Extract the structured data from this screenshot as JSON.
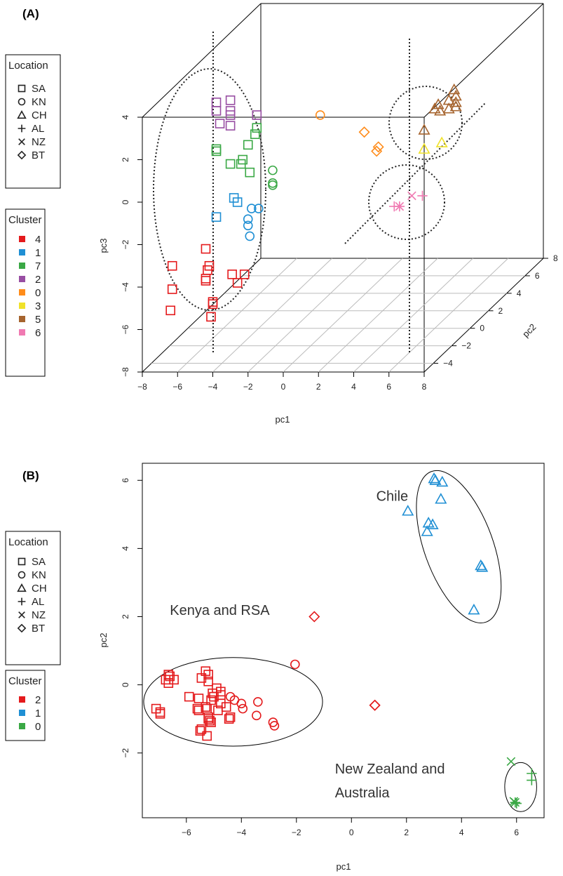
{
  "chart_data": [
    {
      "panel": "(A)",
      "type": "scatter",
      "projection": "3d",
      "xlabel": "pc1",
      "ylabel": "pc2",
      "zlabel": "pc3",
      "xlim": [
        -8,
        8
      ],
      "ylim": [
        -5,
        8
      ],
      "zlim": [
        -8,
        5
      ],
      "x_ticks": [
        "−8",
        "−6",
        "−4",
        "−2",
        "0",
        "2",
        "4",
        "6",
        "8"
      ],
      "y_ticks": [
        "−4",
        "−2",
        "0",
        "2",
        "4",
        "6",
        "8"
      ],
      "z_ticks": [
        "−8",
        "−6",
        "−4",
        "−2",
        "0",
        "2",
        "4"
      ],
      "legend_location": {
        "title": "Location",
        "items": [
          {
            "label": "SA",
            "marker": "square"
          },
          {
            "label": "KN",
            "marker": "circle"
          },
          {
            "label": "CH",
            "marker": "triangle"
          },
          {
            "label": "AL",
            "marker": "plus"
          },
          {
            "label": "NZ",
            "marker": "cross"
          },
          {
            "label": "BT",
            "marker": "diamond"
          }
        ]
      },
      "legend_cluster": {
        "title": "Cluster",
        "items": [
          {
            "label": "4",
            "color": "#e41a1c"
          },
          {
            "label": "1",
            "color": "#1f8fd4"
          },
          {
            "label": "7",
            "color": "#3aa845"
          },
          {
            "label": "2",
            "color": "#984ea3"
          },
          {
            "label": "0",
            "color": "#ff8c1a"
          },
          {
            "label": "3",
            "color": "#f0e22a"
          },
          {
            "label": "5",
            "color": "#a6642e"
          },
          {
            "label": "6",
            "color": "#f07ab2"
          }
        ]
      },
      "points": [
        {
          "pc1": -3.8,
          "pc2": -5,
          "pc3": 4.7,
          "loc": "SA",
          "cl": "2"
        },
        {
          "pc1": -3.0,
          "pc2": -5,
          "pc3": 4.8,
          "loc": "SA",
          "cl": "2"
        },
        {
          "pc1": -3.0,
          "pc2": -5,
          "pc3": 4.3,
          "loc": "SA",
          "cl": "2"
        },
        {
          "pc1": -3.0,
          "pc2": -5,
          "pc3": 4.1,
          "loc": "SA",
          "cl": "2"
        },
        {
          "pc1": -3.6,
          "pc2": -5,
          "pc3": 3.7,
          "loc": "SA",
          "cl": "2"
        },
        {
          "pc1": -3.8,
          "pc2": -5,
          "pc3": 4.3,
          "loc": "SA",
          "cl": "2"
        },
        {
          "pc1": -3.0,
          "pc2": -5,
          "pc3": 3.6,
          "loc": "SA",
          "cl": "2"
        },
        {
          "pc1": -1.5,
          "pc2": -5,
          "pc3": 4.1,
          "loc": "SA",
          "cl": "2"
        },
        {
          "pc1": -1.5,
          "pc2": -5,
          "pc3": 3.5,
          "loc": "SA",
          "cl": "7"
        },
        {
          "pc1": -1.6,
          "pc2": -5,
          "pc3": 3.2,
          "loc": "SA",
          "cl": "7"
        },
        {
          "pc1": -3.8,
          "pc2": -5,
          "pc3": 2.5,
          "loc": "SA",
          "cl": "7"
        },
        {
          "pc1": -3.8,
          "pc2": -5,
          "pc3": 2.4,
          "loc": "SA",
          "cl": "7"
        },
        {
          "pc1": -2.0,
          "pc2": -5,
          "pc3": 2.7,
          "loc": "SA",
          "cl": "7"
        },
        {
          "pc1": -2.4,
          "pc2": -5,
          "pc3": 1.8,
          "loc": "SA",
          "cl": "7"
        },
        {
          "pc1": -2.3,
          "pc2": -5,
          "pc3": 2.0,
          "loc": "SA",
          "cl": "7"
        },
        {
          "pc1": -3.0,
          "pc2": -5,
          "pc3": 1.8,
          "loc": "SA",
          "cl": "7"
        },
        {
          "pc1": -1.9,
          "pc2": -5,
          "pc3": 1.4,
          "loc": "SA",
          "cl": "7"
        },
        {
          "pc1": -0.6,
          "pc2": -5,
          "pc3": 1.5,
          "loc": "KN",
          "cl": "7"
        },
        {
          "pc1": -0.6,
          "pc2": -5,
          "pc3": 0.8,
          "loc": "KN",
          "cl": "7"
        },
        {
          "pc1": -0.6,
          "pc2": -5,
          "pc3": 0.9,
          "loc": "KN",
          "cl": "7"
        },
        {
          "pc1": -2.8,
          "pc2": -5,
          "pc3": 0.2,
          "loc": "SA",
          "cl": "1"
        },
        {
          "pc1": -2.6,
          "pc2": -5,
          "pc3": 0.0,
          "loc": "SA",
          "cl": "1"
        },
        {
          "pc1": -3.8,
          "pc2": -5,
          "pc3": -0.7,
          "loc": "SA",
          "cl": "1"
        },
        {
          "pc1": -1.8,
          "pc2": -5,
          "pc3": -0.3,
          "loc": "KN",
          "cl": "1"
        },
        {
          "pc1": -1.4,
          "pc2": -5,
          "pc3": -0.3,
          "loc": "KN",
          "cl": "1"
        },
        {
          "pc1": -2.0,
          "pc2": -5,
          "pc3": -0.8,
          "loc": "KN",
          "cl": "1"
        },
        {
          "pc1": -2.0,
          "pc2": -5,
          "pc3": -1.1,
          "loc": "KN",
          "cl": "1"
        },
        {
          "pc1": -1.9,
          "pc2": -5,
          "pc3": -1.6,
          "loc": "KN",
          "cl": "1"
        },
        {
          "pc1": -4.4,
          "pc2": -5,
          "pc3": -2.2,
          "loc": "SA",
          "cl": "4"
        },
        {
          "pc1": -6.3,
          "pc2": -5,
          "pc3": -3.0,
          "loc": "SA",
          "cl": "4"
        },
        {
          "pc1": -4.2,
          "pc2": -5,
          "pc3": -3.0,
          "loc": "SA",
          "cl": "4"
        },
        {
          "pc1": -4.3,
          "pc2": -5,
          "pc3": -3.2,
          "loc": "SA",
          "cl": "4"
        },
        {
          "pc1": -2.9,
          "pc2": -5,
          "pc3": -3.4,
          "loc": "SA",
          "cl": "4"
        },
        {
          "pc1": -2.2,
          "pc2": -5,
          "pc3": -3.4,
          "loc": "SA",
          "cl": "4"
        },
        {
          "pc1": -4.4,
          "pc2": -5,
          "pc3": -3.6,
          "loc": "SA",
          "cl": "4"
        },
        {
          "pc1": -4.4,
          "pc2": -5,
          "pc3": -3.7,
          "loc": "SA",
          "cl": "4"
        },
        {
          "pc1": -2.6,
          "pc2": -5,
          "pc3": -3.8,
          "loc": "SA",
          "cl": "4"
        },
        {
          "pc1": -6.3,
          "pc2": -5,
          "pc3": -4.1,
          "loc": "SA",
          "cl": "4"
        },
        {
          "pc1": -4.0,
          "pc2": -5,
          "pc3": -4.7,
          "loc": "SA",
          "cl": "4"
        },
        {
          "pc1": -4.0,
          "pc2": -5,
          "pc3": -4.8,
          "loc": "SA",
          "cl": "4"
        },
        {
          "pc1": -6.4,
          "pc2": -5,
          "pc3": -5.1,
          "loc": "SA",
          "cl": "4"
        },
        {
          "pc1": -4.1,
          "pc2": -5,
          "pc3": -5.4,
          "loc": "SA",
          "cl": "4"
        },
        {
          "pc1": 2.1,
          "pc2": -5,
          "pc3": 4.1,
          "loc": "KN",
          "cl": "0"
        },
        {
          "pc1": 4.6,
          "pc2": -5,
          "pc3": 3.3,
          "loc": "BT",
          "cl": "0"
        },
        {
          "pc1": 5.4,
          "pc2": -5,
          "pc3": 2.6,
          "loc": "BT",
          "cl": "0"
        },
        {
          "pc1": 5.3,
          "pc2": -5,
          "pc3": 2.4,
          "loc": "BT",
          "cl": "0"
        },
        {
          "pc1": 9.7,
          "pc2": -5,
          "pc3": 5.3,
          "loc": "CH",
          "cl": "5"
        },
        {
          "pc1": 9.4,
          "pc2": -5,
          "pc3": 4.8,
          "loc": "CH",
          "cl": "5"
        },
        {
          "pc1": 9.8,
          "pc2": -5,
          "pc3": 4.7,
          "loc": "CH",
          "cl": "5"
        },
        {
          "pc1": 9.4,
          "pc2": -5,
          "pc3": 4.4,
          "loc": "CH",
          "cl": "5"
        },
        {
          "pc1": 8.8,
          "pc2": -5,
          "pc3": 4.6,
          "loc": "CH",
          "cl": "5"
        },
        {
          "pc1": 8.6,
          "pc2": -5,
          "pc3": 4.4,
          "loc": "CH",
          "cl": "5"
        },
        {
          "pc1": 8.9,
          "pc2": -5,
          "pc3": 4.3,
          "loc": "CH",
          "cl": "5"
        },
        {
          "pc1": 9.8,
          "pc2": -5,
          "pc3": 5.0,
          "loc": "CH",
          "cl": "5"
        },
        {
          "pc1": 9.8,
          "pc2": -5,
          "pc3": 4.5,
          "loc": "CH",
          "cl": "5"
        },
        {
          "pc1": 8.0,
          "pc2": -5,
          "pc3": 3.4,
          "loc": "CH",
          "cl": "5"
        },
        {
          "pc1": 8.0,
          "pc2": -5,
          "pc3": 2.5,
          "loc": "CH",
          "cl": "3"
        },
        {
          "pc1": 9.0,
          "pc2": -5,
          "pc3": 2.8,
          "loc": "CH",
          "cl": "3"
        },
        {
          "pc1": 7.3,
          "pc2": -5,
          "pc3": 0.3,
          "loc": "NZ",
          "cl": "6"
        },
        {
          "pc1": 7.9,
          "pc2": -5,
          "pc3": 0.3,
          "loc": "AL",
          "cl": "6"
        },
        {
          "pc1": 6.6,
          "pc2": -5,
          "pc3": -0.2,
          "loc": "AL",
          "cl": "6"
        },
        {
          "pc1": 6.6,
          "pc2": -5,
          "pc3": -0.2,
          "loc": "NZ",
          "cl": "6"
        },
        {
          "pc1": 6.3,
          "pc2": -5,
          "pc3": -0.2,
          "loc": "AL",
          "cl": "6"
        }
      ]
    },
    {
      "panel": "(B)",
      "type": "scatter",
      "xlabel": "pc1",
      "ylabel": "pc2",
      "xlim": [
        -7.6,
        7.0
      ],
      "ylim": [
        -3.9,
        6.5
      ],
      "x_ticks": [
        -6,
        -4,
        -2,
        0,
        2,
        4,
        6
      ],
      "x_tick_labels": [
        "−6",
        "−4",
        "−2",
        "0",
        "2",
        "4",
        "6"
      ],
      "y_ticks": [
        -2,
        0,
        2,
        4,
        6
      ],
      "y_tick_labels": [
        "−2",
        "0",
        "2",
        "4",
        "6"
      ],
      "annotations": [
        {
          "text": "Chile",
          "x": 0.9,
          "y": 5.4
        },
        {
          "text": "Kenya and RSA",
          "x": -6.6,
          "y": 2.05
        },
        {
          "text": "New Zealand and",
          "x": -0.6,
          "y": -2.6
        },
        {
          "text": "Australia",
          "x": -0.6,
          "y": -3.3
        }
      ],
      "legend_location": {
        "title": "Location",
        "items": [
          {
            "label": "SA",
            "marker": "square"
          },
          {
            "label": "KN",
            "marker": "circle"
          },
          {
            "label": "CH",
            "marker": "triangle"
          },
          {
            "label": "AL",
            "marker": "plus"
          },
          {
            "label": "NZ",
            "marker": "cross"
          },
          {
            "label": "BT",
            "marker": "diamond"
          }
        ]
      },
      "legend_cluster": {
        "title": "Cluster",
        "items": [
          {
            "label": "2",
            "color": "#e41a1c"
          },
          {
            "label": "1",
            "color": "#1f8fd4"
          },
          {
            "label": "0",
            "color": "#3aa845"
          }
        ]
      },
      "ellipses": [
        {
          "name": "kenya-rsa",
          "cx": -4.3,
          "cy": -0.5,
          "rx": 3.25,
          "ry": 1.3,
          "angle": 0
        },
        {
          "name": "chile",
          "cx": 3.9,
          "cy": 4.05,
          "rx": 1.25,
          "ry": 2.35,
          "angle": 20
        },
        {
          "name": "nz-au",
          "cx": 6.15,
          "cy": -3.0,
          "rx": 0.58,
          "ry": 0.72,
          "angle": 0
        }
      ],
      "points": [
        {
          "x": 3.0,
          "y": 6.05,
          "loc": "CH",
          "cl": "1"
        },
        {
          "x": 3.05,
          "y": 6.0,
          "loc": "CH",
          "cl": "1"
        },
        {
          "x": 3.3,
          "y": 5.95,
          "loc": "CH",
          "cl": "1"
        },
        {
          "x": 3.25,
          "y": 5.45,
          "loc": "CH",
          "cl": "1"
        },
        {
          "x": 2.05,
          "y": 5.1,
          "loc": "CH",
          "cl": "1"
        },
        {
          "x": 2.8,
          "y": 4.75,
          "loc": "CH",
          "cl": "1"
        },
        {
          "x": 2.95,
          "y": 4.7,
          "loc": "CH",
          "cl": "1"
        },
        {
          "x": 2.75,
          "y": 4.5,
          "loc": "CH",
          "cl": "1"
        },
        {
          "x": 4.7,
          "y": 3.5,
          "loc": "CH",
          "cl": "1"
        },
        {
          "x": 4.75,
          "y": 3.45,
          "loc": "CH",
          "cl": "1"
        },
        {
          "x": 4.45,
          "y": 2.2,
          "loc": "CH",
          "cl": "1"
        },
        {
          "x": -1.35,
          "y": 2.0,
          "loc": "BT",
          "cl": "2"
        },
        {
          "x": 0.85,
          "y": -0.6,
          "loc": "BT",
          "cl": "2"
        },
        {
          "x": 0.85,
          "y": -0.6,
          "loc": "BT",
          "cl": "2"
        },
        {
          "x": -2.05,
          "y": 0.6,
          "loc": "KN",
          "cl": "2"
        },
        {
          "x": -4.4,
          "y": -0.35,
          "loc": "KN",
          "cl": "2"
        },
        {
          "x": -4.25,
          "y": -0.45,
          "loc": "KN",
          "cl": "2"
        },
        {
          "x": -3.95,
          "y": -0.7,
          "loc": "KN",
          "cl": "2"
        },
        {
          "x": -4.0,
          "y": -0.55,
          "loc": "KN",
          "cl": "2"
        },
        {
          "x": -3.4,
          "y": -0.5,
          "loc": "KN",
          "cl": "2"
        },
        {
          "x": -3.45,
          "y": -0.9,
          "loc": "KN",
          "cl": "2"
        },
        {
          "x": -2.85,
          "y": -1.1,
          "loc": "KN",
          "cl": "2"
        },
        {
          "x": -2.8,
          "y": -1.2,
          "loc": "KN",
          "cl": "2"
        },
        {
          "x": -6.65,
          "y": 0.3,
          "loc": "SA",
          "cl": "2"
        },
        {
          "x": -6.6,
          "y": 0.25,
          "loc": "SA",
          "cl": "2"
        },
        {
          "x": -6.75,
          "y": 0.15,
          "loc": "SA",
          "cl": "2"
        },
        {
          "x": -6.65,
          "y": 0.05,
          "loc": "SA",
          "cl": "2"
        },
        {
          "x": -6.45,
          "y": 0.15,
          "loc": "SA",
          "cl": "2"
        },
        {
          "x": -5.3,
          "y": 0.4,
          "loc": "SA",
          "cl": "2"
        },
        {
          "x": -5.45,
          "y": 0.2,
          "loc": "SA",
          "cl": "2"
        },
        {
          "x": -5.2,
          "y": 0.3,
          "loc": "SA",
          "cl": "2"
        },
        {
          "x": -5.2,
          "y": 0.1,
          "loc": "SA",
          "cl": "2"
        },
        {
          "x": -4.9,
          "y": -0.1,
          "loc": "SA",
          "cl": "2"
        },
        {
          "x": -4.75,
          "y": -0.2,
          "loc": "SA",
          "cl": "2"
        },
        {
          "x": -4.75,
          "y": -0.3,
          "loc": "SA",
          "cl": "2"
        },
        {
          "x": -5.05,
          "y": -0.25,
          "loc": "SA",
          "cl": "2"
        },
        {
          "x": -5.0,
          "y": -0.35,
          "loc": "SA",
          "cl": "2"
        },
        {
          "x": -5.1,
          "y": -0.45,
          "loc": "SA",
          "cl": "2"
        },
        {
          "x": -5.55,
          "y": -0.4,
          "loc": "SA",
          "cl": "2"
        },
        {
          "x": -5.9,
          "y": -0.35,
          "loc": "SA",
          "cl": "2"
        },
        {
          "x": -4.75,
          "y": -0.55,
          "loc": "SA",
          "cl": "2"
        },
        {
          "x": -4.55,
          "y": -0.65,
          "loc": "SA",
          "cl": "2"
        },
        {
          "x": -5.55,
          "y": -0.75,
          "loc": "SA",
          "cl": "2"
        },
        {
          "x": -5.6,
          "y": -0.7,
          "loc": "SA",
          "cl": "2"
        },
        {
          "x": -5.3,
          "y": -0.65,
          "loc": "SA",
          "cl": "2"
        },
        {
          "x": -5.25,
          "y": -0.7,
          "loc": "SA",
          "cl": "2"
        },
        {
          "x": -4.85,
          "y": -0.75,
          "loc": "SA",
          "cl": "2"
        },
        {
          "x": -4.4,
          "y": -0.95,
          "loc": "SA",
          "cl": "2"
        },
        {
          "x": -4.45,
          "y": -1.0,
          "loc": "SA",
          "cl": "2"
        },
        {
          "x": -5.2,
          "y": -0.95,
          "loc": "SA",
          "cl": "2"
        },
        {
          "x": -5.2,
          "y": -1.0,
          "loc": "SA",
          "cl": "2"
        },
        {
          "x": -5.15,
          "y": -1.05,
          "loc": "SA",
          "cl": "2"
        },
        {
          "x": -5.1,
          "y": -1.1,
          "loc": "SA",
          "cl": "2"
        },
        {
          "x": -7.1,
          "y": -0.7,
          "loc": "SA",
          "cl": "2"
        },
        {
          "x": -6.95,
          "y": -0.8,
          "loc": "SA",
          "cl": "2"
        },
        {
          "x": -6.95,
          "y": -0.85,
          "loc": "SA",
          "cl": "2"
        },
        {
          "x": -5.45,
          "y": -1.3,
          "loc": "SA",
          "cl": "2"
        },
        {
          "x": -5.5,
          "y": -1.35,
          "loc": "SA",
          "cl": "2"
        },
        {
          "x": -5.25,
          "y": -1.5,
          "loc": "SA",
          "cl": "2"
        },
        {
          "x": 5.8,
          "y": -2.25,
          "loc": "NZ",
          "cl": "0"
        },
        {
          "x": 6.55,
          "y": -2.6,
          "loc": "AL",
          "cl": "0"
        },
        {
          "x": 6.55,
          "y": -2.8,
          "loc": "AL",
          "cl": "0"
        },
        {
          "x": 5.95,
          "y": -3.45,
          "loc": "AL",
          "cl": "0"
        },
        {
          "x": 5.95,
          "y": -3.45,
          "loc": "NZ",
          "cl": "0"
        },
        {
          "x": 6.0,
          "y": -3.48,
          "loc": "AL",
          "cl": "0"
        },
        {
          "x": 5.9,
          "y": -3.42,
          "loc": "NZ",
          "cl": "0"
        }
      ]
    }
  ]
}
